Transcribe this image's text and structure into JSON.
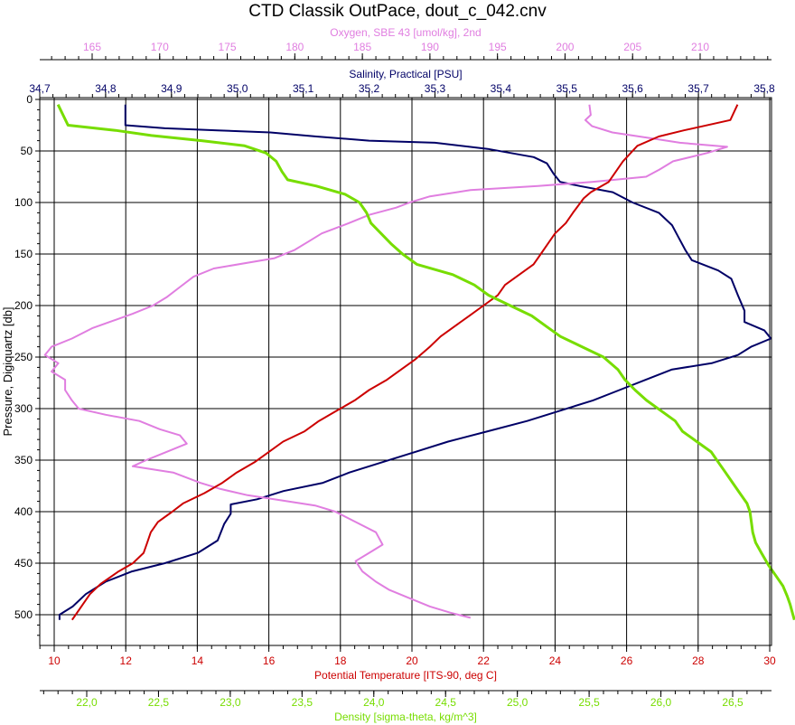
{
  "chart_data": {
    "type": "line",
    "title": "CTD Classik OutPace, dout_c_042.cnv",
    "ylabel": "Pressure, Digiquartz [db]",
    "y_inverted": true,
    "ylim": [
      0,
      525
    ],
    "y_ticks": [
      0,
      50,
      100,
      150,
      200,
      250,
      300,
      350,
      400,
      450,
      500
    ],
    "grid": true,
    "axes": {
      "oxygen": {
        "label": "Oxygen, SBE 43 [umol/kg], 2nd",
        "position": "top",
        "color": "#e07ee0",
        "range": [
          160.5,
          215.5
        ],
        "ticks": [
          "165",
          "170",
          "175",
          "180",
          "185",
          "190",
          "195",
          "200",
          "205",
          "210"
        ]
      },
      "salinity": {
        "label": "Salinity, Practical [PSU]",
        "position": "top",
        "color": "#000066",
        "range": [
          34.7,
          35.82
        ],
        "ticks": [
          "34,7",
          "34,8",
          "34,9",
          "35,0",
          "35,1",
          "35,2",
          "35,3",
          "35,4",
          "35,5",
          "35,6",
          "35,7",
          "35,8"
        ]
      },
      "temperature": {
        "label": "Potential Temperature [ITS-90, deg C]",
        "position": "bottom",
        "color": "#cc0000",
        "range": [
          9.5,
          30
        ],
        "ticks": [
          "10",
          "12",
          "14",
          "16",
          "18",
          "20",
          "22",
          "24",
          "26",
          "28",
          "30"
        ]
      },
      "density": {
        "label": "Density [sigma-theta, kg/m^3]",
        "position": "bottom",
        "color": "#77dd00",
        "range": [
          21.6,
          27.0
        ],
        "ticks": [
          "22,0",
          "22,5",
          "23,0",
          "23,5",
          "24,0",
          "24,5",
          "25,0",
          "25,5",
          "26,0",
          "26,5"
        ]
      }
    },
    "series": [
      {
        "name": "Salinity",
        "axis": "salinity",
        "color": "#000066",
        "points": [
          [
            34.83,
            5
          ],
          [
            34.83,
            25
          ],
          [
            34.89,
            28
          ],
          [
            34.97,
            30
          ],
          [
            35.05,
            32
          ],
          [
            35.12,
            36
          ],
          [
            35.2,
            40
          ],
          [
            35.3,
            42
          ],
          [
            35.38,
            48
          ],
          [
            35.45,
            56
          ],
          [
            35.47,
            62
          ],
          [
            35.48,
            72
          ],
          [
            35.49,
            80
          ],
          [
            35.52,
            84
          ],
          [
            35.57,
            90
          ],
          [
            35.6,
            100
          ],
          [
            35.64,
            110
          ],
          [
            35.66,
            122
          ],
          [
            35.67,
            134
          ],
          [
            35.68,
            146
          ],
          [
            35.69,
            156
          ],
          [
            35.73,
            166
          ],
          [
            35.75,
            174
          ],
          [
            35.76,
            190
          ],
          [
            35.77,
            205
          ],
          [
            35.77,
            216
          ],
          [
            35.8,
            224
          ],
          [
            35.81,
            232
          ],
          [
            35.78,
            240
          ],
          [
            35.76,
            248
          ],
          [
            35.72,
            256
          ],
          [
            35.66,
            262
          ],
          [
            35.62,
            272
          ],
          [
            35.58,
            282
          ],
          [
            35.54,
            292
          ],
          [
            35.49,
            302
          ],
          [
            35.44,
            312
          ],
          [
            35.38,
            322
          ],
          [
            35.32,
            332
          ],
          [
            35.27,
            342
          ],
          [
            35.22,
            352
          ],
          [
            35.17,
            362
          ],
          [
            35.13,
            372
          ],
          [
            35.07,
            380
          ],
          [
            35.03,
            388
          ],
          [
            34.99,
            393
          ],
          [
            34.99,
            402
          ],
          [
            34.98,
            412
          ],
          [
            34.97,
            428
          ],
          [
            34.94,
            440
          ],
          [
            34.89,
            450
          ],
          [
            34.84,
            458
          ],
          [
            34.8,
            468
          ],
          [
            34.77,
            480
          ],
          [
            34.75,
            492
          ],
          [
            34.73,
            500
          ],
          [
            34.73,
            505
          ]
        ]
      },
      {
        "name": "Oxygen",
        "axis": "oxygen",
        "color": "#e07ee0",
        "points": [
          [
            201.8,
            5
          ],
          [
            201.9,
            15
          ],
          [
            201.5,
            20
          ],
          [
            202.0,
            26
          ],
          [
            203.5,
            32
          ],
          [
            206.5,
            38
          ],
          [
            208.5,
            42
          ],
          [
            212.0,
            46
          ],
          [
            210.5,
            52
          ],
          [
            208.0,
            60
          ],
          [
            207.0,
            68
          ],
          [
            206.0,
            75
          ],
          [
            202.0,
            80
          ],
          [
            198.0,
            84
          ],
          [
            193.0,
            88
          ],
          [
            190.0,
            94
          ],
          [
            188.5,
            100
          ],
          [
            187.5,
            105
          ],
          [
            185.5,
            112
          ],
          [
            184.0,
            120
          ],
          [
            182.0,
            130
          ],
          [
            181.0,
            138
          ],
          [
            180.0,
            146
          ],
          [
            178.5,
            154
          ],
          [
            174.0,
            164
          ],
          [
            172.5,
            172
          ],
          [
            171.5,
            182
          ],
          [
            170.5,
            192
          ],
          [
            169.5,
            200
          ],
          [
            168.0,
            208
          ],
          [
            166.5,
            215
          ],
          [
            165.0,
            222
          ],
          [
            163.5,
            232
          ],
          [
            162.0,
            240
          ],
          [
            161.5,
            248
          ],
          [
            162.5,
            256
          ],
          [
            162.0,
            264
          ],
          [
            163.0,
            272
          ],
          [
            163.0,
            282
          ],
          [
            163.5,
            292
          ],
          [
            164.0,
            300
          ],
          [
            166.0,
            306
          ],
          [
            168.5,
            312
          ],
          [
            170.0,
            320
          ],
          [
            171.5,
            326
          ],
          [
            172.0,
            334
          ],
          [
            170.5,
            342
          ],
          [
            169.0,
            350
          ],
          [
            168.0,
            356
          ],
          [
            171.0,
            362
          ],
          [
            173.0,
            372
          ],
          [
            174.5,
            378
          ],
          [
            176.5,
            384
          ],
          [
            179.5,
            390
          ],
          [
            181.5,
            394
          ],
          [
            183.0,
            400
          ],
          [
            184.5,
            410
          ],
          [
            186.0,
            420
          ],
          [
            186.5,
            432
          ],
          [
            185.5,
            440
          ],
          [
            184.5,
            448
          ],
          [
            185.0,
            458
          ],
          [
            186.0,
            468
          ],
          [
            187.0,
            476
          ],
          [
            188.5,
            484
          ],
          [
            190.0,
            492
          ],
          [
            191.5,
            498
          ],
          [
            193.0,
            503
          ]
        ]
      },
      {
        "name": "Potential Temperature",
        "axis": "temperature",
        "color": "#cc0000",
        "points": [
          [
            29.1,
            5
          ],
          [
            28.9,
            20
          ],
          [
            27.6,
            30
          ],
          [
            26.9,
            36
          ],
          [
            26.3,
            45
          ],
          [
            25.9,
            60
          ],
          [
            25.7,
            70
          ],
          [
            25.5,
            80
          ],
          [
            25.0,
            90
          ],
          [
            24.8,
            96
          ],
          [
            24.5,
            110
          ],
          [
            24.3,
            120
          ],
          [
            24.0,
            130
          ],
          [
            23.8,
            140
          ],
          [
            23.6,
            150
          ],
          [
            23.4,
            160
          ],
          [
            23.0,
            170
          ],
          [
            22.6,
            180
          ],
          [
            22.4,
            190
          ],
          [
            22.0,
            200
          ],
          [
            21.6,
            210
          ],
          [
            21.2,
            220
          ],
          [
            20.8,
            230
          ],
          [
            20.5,
            240
          ],
          [
            20.1,
            252
          ],
          [
            19.7,
            262
          ],
          [
            19.3,
            272
          ],
          [
            18.8,
            282
          ],
          [
            18.4,
            292
          ],
          [
            17.9,
            302
          ],
          [
            17.4,
            312
          ],
          [
            17.0,
            322
          ],
          [
            16.4,
            332
          ],
          [
            16.0,
            342
          ],
          [
            15.6,
            352
          ],
          [
            15.1,
            362
          ],
          [
            14.7,
            372
          ],
          [
            14.2,
            382
          ],
          [
            13.6,
            392
          ],
          [
            13.3,
            400
          ],
          [
            12.9,
            410
          ],
          [
            12.7,
            420
          ],
          [
            12.6,
            430
          ],
          [
            12.5,
            440
          ],
          [
            12.2,
            450
          ],
          [
            11.8,
            458
          ],
          [
            11.3,
            470
          ],
          [
            11.0,
            480
          ],
          [
            10.8,
            490
          ],
          [
            10.6,
            500
          ],
          [
            10.5,
            505
          ]
        ]
      },
      {
        "name": "Density",
        "axis": "density",
        "color": "#77dd00",
        "points": [
          [
            21.8,
            5
          ],
          [
            21.87,
            25
          ],
          [
            22.2,
            30
          ],
          [
            22.45,
            35
          ],
          [
            22.8,
            40
          ],
          [
            23.1,
            45
          ],
          [
            23.25,
            52
          ],
          [
            23.32,
            60
          ],
          [
            23.36,
            70
          ],
          [
            23.4,
            78
          ],
          [
            23.6,
            84
          ],
          [
            23.8,
            92
          ],
          [
            23.9,
            100
          ],
          [
            23.95,
            110
          ],
          [
            23.98,
            120
          ],
          [
            24.05,
            130
          ],
          [
            24.12,
            140
          ],
          [
            24.2,
            150
          ],
          [
            24.3,
            160
          ],
          [
            24.55,
            170
          ],
          [
            24.7,
            180
          ],
          [
            24.8,
            190
          ],
          [
            24.95,
            200
          ],
          [
            25.1,
            210
          ],
          [
            25.2,
            220
          ],
          [
            25.3,
            230
          ],
          [
            25.45,
            240
          ],
          [
            25.6,
            250
          ],
          [
            25.7,
            262
          ],
          [
            25.75,
            272
          ],
          [
            25.82,
            282
          ],
          [
            25.9,
            292
          ],
          [
            26.0,
            302
          ],
          [
            26.1,
            312
          ],
          [
            26.15,
            322
          ],
          [
            26.25,
            332
          ],
          [
            26.35,
            342
          ],
          [
            26.4,
            352
          ],
          [
            26.45,
            362
          ],
          [
            26.5,
            372
          ],
          [
            26.55,
            382
          ],
          [
            26.6,
            392
          ],
          [
            26.62,
            400
          ],
          [
            26.63,
            410
          ],
          [
            26.64,
            420
          ],
          [
            26.66,
            430
          ],
          [
            26.7,
            440
          ],
          [
            26.75,
            452
          ],
          [
            26.8,
            462
          ],
          [
            26.85,
            472
          ],
          [
            26.88,
            482
          ],
          [
            26.9,
            490
          ],
          [
            26.92,
            500
          ],
          [
            26.93,
            505
          ]
        ]
      }
    ]
  }
}
